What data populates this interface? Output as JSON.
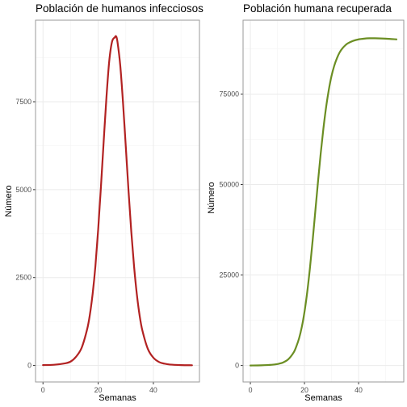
{
  "chart_data": [
    {
      "type": "line",
      "title": "Población de humanos infecciosos",
      "xlabel": "Semanas",
      "ylabel": "Número",
      "xlim": [
        -2.7,
        56.7
      ],
      "ylim": [
        -470,
        9820
      ],
      "x_ticks": [
        0,
        20,
        40
      ],
      "y_ticks": [
        0,
        2500,
        5000,
        7500
      ],
      "y_tick_labels": [
        "0",
        "2500",
        "5000",
        "7500"
      ],
      "grid": true,
      "legend": "none",
      "color": "#b22222",
      "series": [
        {
          "x": [
            0,
            4,
            8,
            10,
            12,
            14,
            16,
            17,
            18,
            19,
            20,
            21,
            22,
            23,
            24,
            25,
            26,
            26.5,
            27,
            28,
            29,
            30,
            31,
            32,
            33,
            34,
            35,
            36,
            38,
            40,
            42,
            44,
            46,
            50,
            54
          ],
          "y": [
            10,
            20,
            60,
            110,
            250,
            500,
            1030,
            1450,
            2040,
            2830,
            3870,
            5080,
            6380,
            7630,
            8650,
            9200,
            9330,
            9360,
            9200,
            8530,
            7470,
            6230,
            4960,
            3800,
            2820,
            2030,
            1430,
            1000,
            470,
            220,
            100,
            50,
            25,
            10,
            5
          ]
        }
      ]
    },
    {
      "type": "line",
      "title": "Población humana recuperada",
      "xlabel": "Semanas",
      "ylabel": "Número",
      "xlim": [
        -2.7,
        56.7
      ],
      "ylim": [
        -4550,
        95400
      ],
      "x_ticks": [
        0,
        20,
        40
      ],
      "y_ticks": [
        0,
        25000,
        50000,
        75000
      ],
      "y_tick_labels": [
        "0",
        "25000",
        "50000",
        "75000"
      ],
      "grid": true,
      "legend": "none",
      "color": "#6b8e23",
      "series": [
        {
          "x": [
            0,
            4,
            8,
            10,
            12,
            14,
            16,
            17,
            18,
            19,
            20,
            21,
            22,
            23,
            24,
            25,
            26,
            27,
            28,
            29,
            30,
            31,
            32,
            33,
            34,
            35,
            36,
            38,
            40,
            42,
            44,
            46,
            50,
            54
          ],
          "y": [
            0,
            50,
            200,
            400,
            800,
            1700,
            3600,
            5300,
            7500,
            10600,
            14800,
            20200,
            26800,
            34400,
            42600,
            50800,
            58600,
            65500,
            71400,
            76200,
            80000,
            82800,
            84900,
            86500,
            87600,
            88400,
            89000,
            89700,
            90100,
            90300,
            90400,
            90400,
            90300,
            90100
          ]
        }
      ]
    }
  ]
}
